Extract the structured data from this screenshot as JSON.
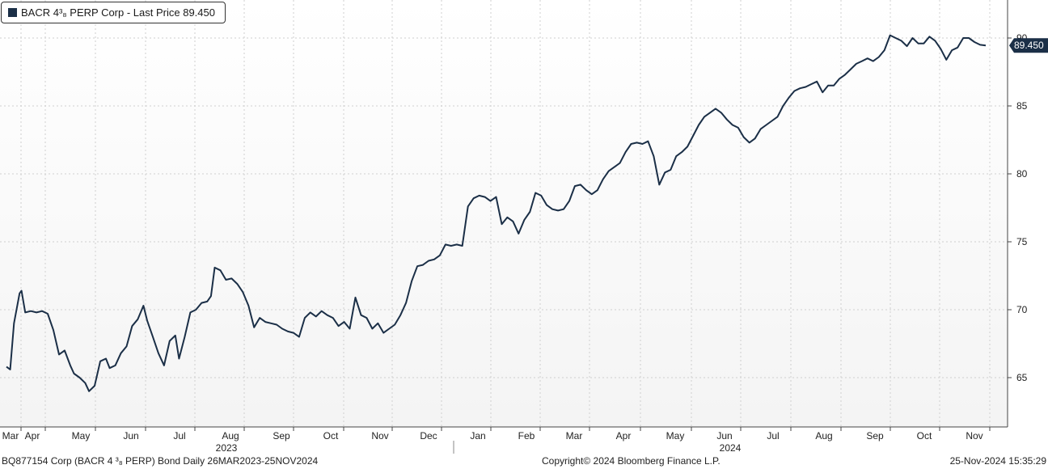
{
  "legend": {
    "label": "BACR 4³₈ PERP Corp - Last Price 89.450"
  },
  "footer": {
    "left": "BQ877154 Corp (BACR 4 ³₈ PERP) Bond  Daily 26MAR2023-25NOV2024",
    "center": "Copyright© 2024 Bloomberg Finance L.P.",
    "right": "25-Nov-2024 15:35:29"
  },
  "colors": {
    "line": "#1b2f47",
    "grid": "#cfcfcf",
    "axis": "#444444"
  },
  "chart_data": {
    "type": "line",
    "title": "",
    "xlabel": "",
    "ylabel": "",
    "ylim": [
      62,
      92
    ],
    "yticks": [
      65,
      70,
      75,
      80,
      85,
      90
    ],
    "grid": true,
    "legend_position": "top-left",
    "last_value_label": "89.450",
    "x_month_labels": [
      "Mar",
      "Apr",
      "May",
      "Jun",
      "Jul",
      "Aug",
      "Sep",
      "Oct",
      "Nov",
      "Dec",
      "Jan",
      "Feb",
      "Mar",
      "Apr",
      "May",
      "Jun",
      "Jul",
      "Aug",
      "Sep",
      "Oct",
      "Nov"
    ],
    "x_year_labels": [
      "2023",
      "2024"
    ],
    "series": [
      {
        "name": "BACR 4³₈ PERP Corp - Last Price",
        "points": [
          [
            "2023-03-26",
            65.8
          ],
          [
            "2023-03-28",
            65.6
          ],
          [
            "2023-03-30",
            69.0
          ],
          [
            "2023-04-02",
            71.2
          ],
          [
            "2023-04-03",
            71.4
          ],
          [
            "2023-04-05",
            69.8
          ],
          [
            "2023-04-08",
            69.9
          ],
          [
            "2023-04-11",
            69.8
          ],
          [
            "2023-04-14",
            69.9
          ],
          [
            "2023-04-17",
            69.7
          ],
          [
            "2023-04-20",
            68.5
          ],
          [
            "2023-04-23",
            66.7
          ],
          [
            "2023-04-26",
            67.0
          ],
          [
            "2023-04-29",
            65.9
          ],
          [
            "2023-05-01",
            65.3
          ],
          [
            "2023-05-04",
            65.0
          ],
          [
            "2023-05-07",
            64.6
          ],
          [
            "2023-05-09",
            64.0
          ],
          [
            "2023-05-12",
            64.4
          ],
          [
            "2023-05-15",
            66.2
          ],
          [
            "2023-05-18",
            66.4
          ],
          [
            "2023-05-20",
            65.7
          ],
          [
            "2023-05-23",
            65.9
          ],
          [
            "2023-05-26",
            66.8
          ],
          [
            "2023-05-29",
            67.3
          ],
          [
            "2023-06-01",
            68.8
          ],
          [
            "2023-06-04",
            69.3
          ],
          [
            "2023-06-07",
            70.3
          ],
          [
            "2023-06-09",
            69.2
          ],
          [
            "2023-06-12",
            68.0
          ],
          [
            "2023-06-15",
            66.8
          ],
          [
            "2023-06-18",
            65.9
          ],
          [
            "2023-06-21",
            67.7
          ],
          [
            "2023-06-24",
            68.1
          ],
          [
            "2023-06-26",
            66.4
          ],
          [
            "2023-06-29",
            68.0
          ],
          [
            "2023-07-02",
            69.8
          ],
          [
            "2023-07-05",
            70.0
          ],
          [
            "2023-07-08",
            70.5
          ],
          [
            "2023-07-11",
            70.6
          ],
          [
            "2023-07-13",
            71.0
          ],
          [
            "2023-07-15",
            73.1
          ],
          [
            "2023-07-18",
            72.9
          ],
          [
            "2023-07-21",
            72.2
          ],
          [
            "2023-07-24",
            72.3
          ],
          [
            "2023-07-27",
            71.9
          ],
          [
            "2023-07-30",
            71.3
          ],
          [
            "2023-08-02",
            70.3
          ],
          [
            "2023-08-05",
            68.7
          ],
          [
            "2023-08-08",
            69.4
          ],
          [
            "2023-08-11",
            69.1
          ],
          [
            "2023-08-14",
            69.0
          ],
          [
            "2023-08-17",
            68.9
          ],
          [
            "2023-08-20",
            68.6
          ],
          [
            "2023-08-23",
            68.4
          ],
          [
            "2023-08-26",
            68.3
          ],
          [
            "2023-08-29",
            68.0
          ],
          [
            "2023-09-01",
            69.4
          ],
          [
            "2023-09-04",
            69.8
          ],
          [
            "2023-09-07",
            69.5
          ],
          [
            "2023-09-10",
            69.9
          ],
          [
            "2023-09-13",
            69.6
          ],
          [
            "2023-09-16",
            69.4
          ],
          [
            "2023-09-19",
            68.8
          ],
          [
            "2023-09-22",
            69.1
          ],
          [
            "2023-09-25",
            68.6
          ],
          [
            "2023-09-28",
            70.9
          ],
          [
            "2023-10-01",
            69.6
          ],
          [
            "2023-10-04",
            69.4
          ],
          [
            "2023-10-07",
            68.6
          ],
          [
            "2023-10-10",
            69.0
          ],
          [
            "2023-10-13",
            68.3
          ],
          [
            "2023-10-16",
            68.6
          ],
          [
            "2023-10-19",
            68.9
          ],
          [
            "2023-10-22",
            69.6
          ],
          [
            "2023-10-25",
            70.5
          ],
          [
            "2023-10-28",
            72.1
          ],
          [
            "2023-10-31",
            73.2
          ],
          [
            "2023-11-03",
            73.3
          ],
          [
            "2023-11-06",
            73.6
          ],
          [
            "2023-11-09",
            73.7
          ],
          [
            "2023-11-12",
            74.0
          ],
          [
            "2023-11-15",
            74.8
          ],
          [
            "2023-11-18",
            74.7
          ],
          [
            "2023-11-21",
            74.8
          ],
          [
            "2023-11-24",
            74.7
          ],
          [
            "2023-11-27",
            77.6
          ],
          [
            "2023-11-30",
            78.2
          ],
          [
            "2023-12-03",
            78.4
          ],
          [
            "2023-12-06",
            78.3
          ],
          [
            "2023-12-09",
            78.0
          ],
          [
            "2023-12-12",
            78.3
          ],
          [
            "2023-12-15",
            76.3
          ],
          [
            "2023-12-18",
            76.8
          ],
          [
            "2023-12-21",
            76.5
          ],
          [
            "2023-12-24",
            75.6
          ],
          [
            "2023-12-27",
            76.6
          ],
          [
            "2023-12-30",
            77.2
          ],
          [
            "2024-01-02",
            78.6
          ],
          [
            "2024-01-05",
            78.4
          ],
          [
            "2024-01-08",
            77.7
          ],
          [
            "2024-01-11",
            77.4
          ],
          [
            "2024-01-14",
            77.3
          ],
          [
            "2024-01-17",
            77.4
          ],
          [
            "2024-01-20",
            78.0
          ],
          [
            "2024-01-23",
            79.1
          ],
          [
            "2024-01-26",
            79.2
          ],
          [
            "2024-01-29",
            78.8
          ],
          [
            "2024-02-01",
            78.5
          ],
          [
            "2024-02-04",
            78.8
          ],
          [
            "2024-02-07",
            79.6
          ],
          [
            "2024-02-10",
            80.2
          ],
          [
            "2024-02-13",
            80.5
          ],
          [
            "2024-02-16",
            80.8
          ],
          [
            "2024-02-19",
            81.6
          ],
          [
            "2024-02-22",
            82.2
          ],
          [
            "2024-02-25",
            82.3
          ],
          [
            "2024-02-28",
            82.2
          ],
          [
            "2024-03-02",
            82.4
          ],
          [
            "2024-03-05",
            81.3
          ],
          [
            "2024-03-08",
            79.2
          ],
          [
            "2024-03-11",
            80.1
          ],
          [
            "2024-03-14",
            80.3
          ],
          [
            "2024-03-17",
            81.3
          ],
          [
            "2024-03-20",
            81.6
          ],
          [
            "2024-03-23",
            82.0
          ],
          [
            "2024-03-26",
            82.8
          ],
          [
            "2024-03-29",
            83.6
          ],
          [
            "2024-04-01",
            84.2
          ],
          [
            "2024-04-04",
            84.5
          ],
          [
            "2024-04-07",
            84.8
          ],
          [
            "2024-04-10",
            84.5
          ],
          [
            "2024-04-13",
            84.0
          ],
          [
            "2024-04-16",
            83.6
          ],
          [
            "2024-04-19",
            83.4
          ],
          [
            "2024-04-22",
            82.7
          ],
          [
            "2024-04-25",
            82.3
          ],
          [
            "2024-04-28",
            82.6
          ],
          [
            "2024-05-01",
            83.3
          ],
          [
            "2024-05-04",
            83.6
          ],
          [
            "2024-05-07",
            83.9
          ],
          [
            "2024-05-10",
            84.2
          ],
          [
            "2024-05-13",
            85.0
          ],
          [
            "2024-05-16",
            85.6
          ],
          [
            "2024-05-19",
            86.1
          ],
          [
            "2024-05-22",
            86.3
          ],
          [
            "2024-05-25",
            86.4
          ],
          [
            "2024-05-28",
            86.6
          ],
          [
            "2024-05-31",
            86.8
          ],
          [
            "2024-06-03",
            86.0
          ],
          [
            "2024-06-06",
            86.5
          ],
          [
            "2024-06-09",
            86.5
          ],
          [
            "2024-06-12",
            87.0
          ],
          [
            "2024-06-15",
            87.3
          ],
          [
            "2024-06-18",
            87.7
          ],
          [
            "2024-06-21",
            88.1
          ],
          [
            "2024-06-24",
            88.3
          ],
          [
            "2024-06-27",
            88.5
          ],
          [
            "2024-06-30",
            88.3
          ],
          [
            "2024-07-03",
            88.6
          ],
          [
            "2024-07-06",
            89.1
          ],
          [
            "2024-07-09",
            90.2
          ],
          [
            "2024-07-12",
            90.0
          ],
          [
            "2024-07-15",
            89.8
          ],
          [
            "2024-07-18",
            89.4
          ],
          [
            "2024-07-21",
            90.0
          ],
          [
            "2024-07-24",
            89.6
          ],
          [
            "2024-07-27",
            89.6
          ],
          [
            "2024-07-30",
            90.1
          ],
          [
            "2024-08-02",
            89.8
          ],
          [
            "2024-08-05",
            89.2
          ],
          [
            "2024-08-08",
            88.4
          ],
          [
            "2024-08-11",
            89.1
          ],
          [
            "2024-08-14",
            89.3
          ],
          [
            "2024-08-17",
            90.0
          ],
          [
            "2024-08-20",
            90.0
          ],
          [
            "2024-08-23",
            89.7
          ],
          [
            "2024-08-26",
            89.5
          ],
          [
            "2024-08-29",
            89.45
          ]
        ]
      }
    ]
  }
}
